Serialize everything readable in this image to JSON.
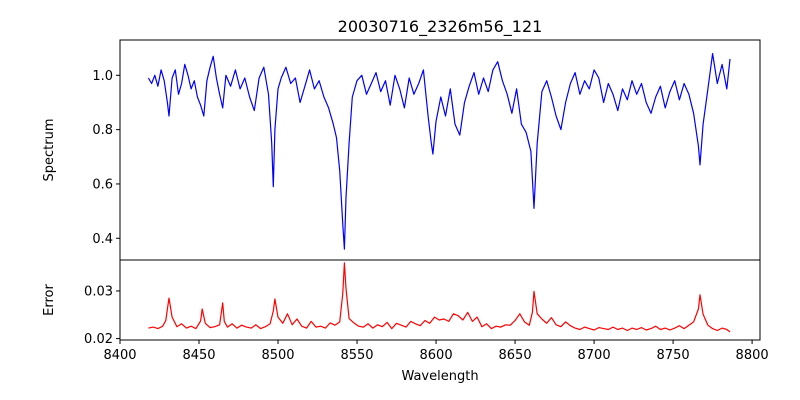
{
  "chart_data": {
    "type": "line",
    "title": "20030716_2326m56_121",
    "xlabel": "Wavelength",
    "xlim": [
      8400,
      8805
    ],
    "xticks": [
      8400,
      8450,
      8500,
      8550,
      8600,
      8650,
      8700,
      8750,
      8800
    ],
    "grid": false,
    "legend": "none",
    "panels": [
      {
        "ylabel": "Spectrum",
        "ylim": [
          0.32,
          1.13
        ],
        "yticks": [
          0.4,
          0.6,
          0.8,
          1.0
        ],
        "ytick_labels": [
          "0.4",
          "0.6",
          "0.8",
          "1.0"
        ],
        "series": [
          {
            "color": "#0000ff",
            "x": [
              8418,
              8420,
              8422,
              8424,
              8426,
              8428,
              8430,
              8431,
              8433,
              8435,
              8437,
              8439,
              8441,
              8443,
              8445,
              8447,
              8449,
              8451,
              8453,
              8455,
              8457,
              8459,
              8461,
              8463,
              8465,
              8467,
              8470,
              8473,
              8476,
              8479,
              8482,
              8485,
              8488,
              8491,
              8494,
              8496,
              8497,
              8498,
              8500,
              8502,
              8505,
              8508,
              8511,
              8514,
              8517,
              8520,
              8523,
              8526,
              8529,
              8532,
              8535,
              8537,
              8539,
              8541,
              8542,
              8543,
              8545,
              8547,
              8550,
              8553,
              8556,
              8559,
              8562,
              8565,
              8568,
              8571,
              8574,
              8577,
              8580,
              8583,
              8586,
              8589,
              8592,
              8595,
              8597,
              8598,
              8600,
              8603,
              8606,
              8609,
              8612,
              8615,
              8618,
              8621,
              8624,
              8627,
              8630,
              8633,
              8636,
              8639,
              8642,
              8645,
              8648,
              8651,
              8654,
              8657,
              8660,
              8662,
              8664,
              8667,
              8670,
              8673,
              8676,
              8679,
              8682,
              8685,
              8688,
              8691,
              8694,
              8697,
              8700,
              8703,
              8706,
              8709,
              8712,
              8715,
              8718,
              8721,
              8724,
              8727,
              8730,
              8733,
              8736,
              8739,
              8742,
              8745,
              8748,
              8751,
              8754,
              8757,
              8760,
              8763,
              8766,
              8767,
              8769,
              8772,
              8775,
              8778,
              8781,
              8784,
              8786
            ],
            "y": [
              0.99,
              0.97,
              1.0,
              0.96,
              1.02,
              0.98,
              0.9,
              0.85,
              0.99,
              1.02,
              0.93,
              0.97,
              1.04,
              1.0,
              0.95,
              0.98,
              0.92,
              0.89,
              0.85,
              0.98,
              1.03,
              1.07,
              0.99,
              0.93,
              0.88,
              1.0,
              0.96,
              1.02,
              0.95,
              0.99,
              0.92,
              0.87,
              0.99,
              1.03,
              0.93,
              0.75,
              0.59,
              0.8,
              0.95,
              0.99,
              1.03,
              0.97,
              0.99,
              0.9,
              0.96,
              1.02,
              0.95,
              0.98,
              0.92,
              0.88,
              0.82,
              0.77,
              0.65,
              0.45,
              0.36,
              0.55,
              0.75,
              0.92,
              0.98,
              1.0,
              0.93,
              0.97,
              1.01,
              0.94,
              0.98,
              0.89,
              1.0,
              0.95,
              0.88,
              0.99,
              0.93,
              0.97,
              1.02,
              0.85,
              0.75,
              0.71,
              0.83,
              0.92,
              0.85,
              0.95,
              0.82,
              0.78,
              0.9,
              0.96,
              1.01,
              0.93,
              0.99,
              0.94,
              1.02,
              1.05,
              0.98,
              0.93,
              0.86,
              0.95,
              0.82,
              0.79,
              0.72,
              0.51,
              0.75,
              0.94,
              0.98,
              0.92,
              0.85,
              0.8,
              0.9,
              0.97,
              1.01,
              0.93,
              0.98,
              0.95,
              1.02,
              0.99,
              0.9,
              0.97,
              0.93,
              0.87,
              0.95,
              0.91,
              0.98,
              0.93,
              0.97,
              0.9,
              0.86,
              0.92,
              0.96,
              0.88,
              0.94,
              0.98,
              0.91,
              0.97,
              0.93,
              0.86,
              0.74,
              0.67,
              0.82,
              0.95,
              1.08,
              0.97,
              1.04,
              0.95,
              1.06
            ]
          }
        ]
      },
      {
        "ylabel": "Error",
        "ylim": [
          0.0197,
          0.0365
        ],
        "yticks": [
          0.02,
          0.03
        ],
        "ytick_labels": [
          "0.02",
          "0.03"
        ],
        "series": [
          {
            "color": "#ff0000",
            "x": [
              8418,
              8421,
              8424,
              8427,
              8429,
              8430,
              8431,
              8433,
              8436,
              8439,
              8442,
              8445,
              8448,
              8451,
              8452,
              8454,
              8457,
              8460,
              8463,
              8465,
              8466,
              8468,
              8471,
              8474,
              8477,
              8480,
              8483,
              8486,
              8489,
              8492,
              8495,
              8497,
              8498,
              8500,
              8503,
              8506,
              8509,
              8512,
              8515,
              8518,
              8521,
              8524,
              8527,
              8530,
              8533,
              8536,
              8539,
              8541,
              8542,
              8543,
              8545,
              8548,
              8551,
              8554,
              8557,
              8560,
              8563,
              8566,
              8569,
              8572,
              8575,
              8578,
              8581,
              8584,
              8587,
              8590,
              8593,
              8596,
              8599,
              8602,
              8605,
              8608,
              8611,
              8614,
              8617,
              8620,
              8623,
              8626,
              8629,
              8632,
              8635,
              8638,
              8641,
              8644,
              8647,
              8650,
              8653,
              8656,
              8659,
              8661,
              8662,
              8664,
              8667,
              8670,
              8673,
              8676,
              8679,
              8682,
              8685,
              8688,
              8691,
              8694,
              8697,
              8700,
              8703,
              8706,
              8709,
              8712,
              8715,
              8718,
              8721,
              8724,
              8727,
              8730,
              8733,
              8736,
              8739,
              8742,
              8745,
              8748,
              8751,
              8754,
              8757,
              8760,
              8763,
              8766,
              8767,
              8769,
              8772,
              8775,
              8778,
              8781,
              8784,
              8786
            ],
            "y": [
              0.0222,
              0.0224,
              0.0221,
              0.0226,
              0.0238,
              0.0262,
              0.0285,
              0.0245,
              0.0225,
              0.0231,
              0.0222,
              0.0226,
              0.0221,
              0.0237,
              0.0262,
              0.0232,
              0.0223,
              0.0225,
              0.0229,
              0.0275,
              0.0236,
              0.0224,
              0.0231,
              0.0222,
              0.0228,
              0.0224,
              0.0222,
              0.0229,
              0.0221,
              0.0225,
              0.0231,
              0.0258,
              0.0283,
              0.0245,
              0.0232,
              0.0252,
              0.0229,
              0.0241,
              0.0226,
              0.0222,
              0.0236,
              0.0224,
              0.0226,
              0.0222,
              0.0233,
              0.0228,
              0.0235,
              0.0295,
              0.0359,
              0.0305,
              0.0242,
              0.0233,
              0.0226,
              0.0224,
              0.0231,
              0.0222,
              0.0229,
              0.0225,
              0.0234,
              0.0221,
              0.0232,
              0.0228,
              0.0224,
              0.0236,
              0.0231,
              0.0227,
              0.0238,
              0.0232,
              0.0245,
              0.0239,
              0.0241,
              0.0236,
              0.0252,
              0.0248,
              0.0239,
              0.0255,
              0.0236,
              0.0245,
              0.0225,
              0.0231,
              0.0221,
              0.0226,
              0.0224,
              0.0229,
              0.0228,
              0.0238,
              0.0252,
              0.0235,
              0.0228,
              0.0255,
              0.0299,
              0.0252,
              0.0241,
              0.0232,
              0.0244,
              0.0229,
              0.0225,
              0.0235,
              0.0227,
              0.0222,
              0.0219,
              0.0224,
              0.0221,
              0.0218,
              0.0223,
              0.0221,
              0.0219,
              0.0224,
              0.0219,
              0.0222,
              0.0217,
              0.0222,
              0.0219,
              0.0223,
              0.0218,
              0.0221,
              0.0226,
              0.0219,
              0.0222,
              0.0218,
              0.0222,
              0.0227,
              0.0221,
              0.0228,
              0.0235,
              0.0262,
              0.0292,
              0.0251,
              0.0228,
              0.0221,
              0.0217,
              0.0222,
              0.0219,
              0.0214
            ]
          }
        ]
      }
    ]
  }
}
